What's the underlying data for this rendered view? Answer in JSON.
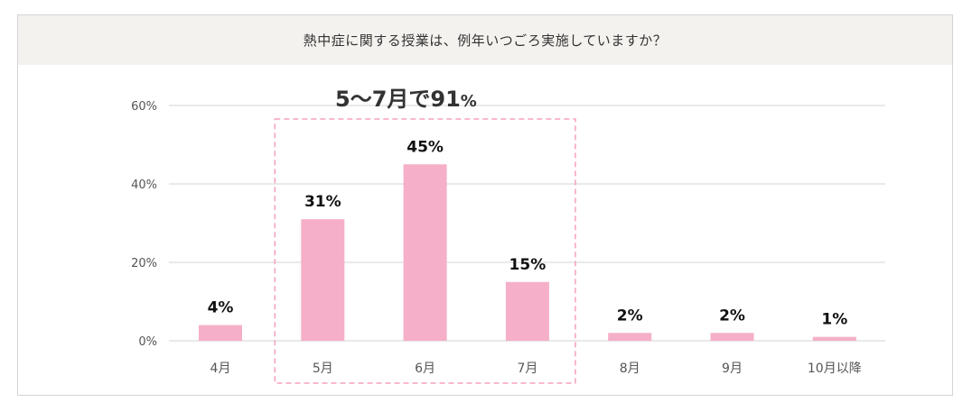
{
  "question": "熱中症に関する授業は、例年いつごろ実施していますか？",
  "callout": {
    "main": "5〜7月で91",
    "unit": "%"
  },
  "colors": {
    "bar": "#f5afc9",
    "highlight_border": "#f5a0bd",
    "grid": "#dcdcdc",
    "axis_text": "#555555",
    "label_text": "#111111"
  },
  "chart_data": {
    "type": "bar",
    "title": "熱中症に関する授業は、例年いつごろ実施していますか？",
    "categories": [
      "4月",
      "5月",
      "6月",
      "7月",
      "8月",
      "9月",
      "10月以降"
    ],
    "values": [
      4,
      31,
      45,
      15,
      2,
      2,
      1
    ],
    "value_labels": [
      "4%",
      "31%",
      "45%",
      "15%",
      "2%",
      "2%",
      "1%"
    ],
    "ylim": [
      0,
      60
    ],
    "yticks": [
      0,
      20,
      40,
      60
    ],
    "ytick_labels": [
      "0%",
      "20%",
      "40%",
      "60%"
    ],
    "xlabel": "",
    "ylabel": "",
    "grid": true,
    "highlight": {
      "categories": [
        "5月",
        "6月",
        "7月"
      ],
      "label": "5〜7月で91%"
    }
  }
}
